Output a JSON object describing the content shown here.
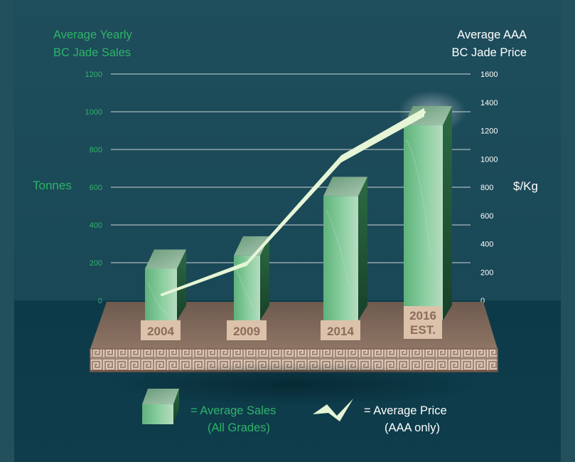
{
  "chart_data": {
    "type": "bar",
    "title_left": [
      "Average Yearly",
      "BC Jade Sales"
    ],
    "title_right": [
      "Average AAA",
      "BC Jade Price"
    ],
    "ylabel_left": "Tonnes",
    "ylabel_right": "$/Kg",
    "ylim_left": [
      0,
      1200
    ],
    "ylim_right": [
      0,
      1600
    ],
    "yticks_left": [
      "0",
      "200",
      "400",
      "600",
      "800",
      "1000",
      "1200"
    ],
    "yticks_right": [
      "0",
      "200",
      "400",
      "600",
      "800",
      "1000",
      "1200",
      "1400",
      "1600"
    ],
    "grid": true,
    "categories": [
      [
        "2004"
      ],
      [
        "2009"
      ],
      [
        "2014"
      ],
      [
        "2016",
        "EST."
      ]
    ],
    "series": [
      {
        "name": "Average Sales (All Grades)",
        "kind": "bar",
        "axis": "left",
        "values": [
          270,
          340,
          655,
          1030
        ]
      },
      {
        "name": "Average Price (AAA only)",
        "kind": "line",
        "axis": "right",
        "values": [
          40,
          260,
          1000,
          1330
        ]
      }
    ],
    "legend": {
      "placement": "bottom",
      "items": [
        {
          "icon": "jade-block-icon",
          "lines": [
            "= Average Sales",
            "(All Grades)"
          ]
        },
        {
          "icon": "zigzag-line-icon",
          "lines": [
            "= Average Price",
            "(AAA only)"
          ]
        }
      ]
    }
  },
  "colors": {
    "background_top": "#1c4c5a",
    "background_bottom": "#0f3a48",
    "green_text": "#2fb36a",
    "white_text": "#ffffff",
    "grid": "#a9b9bc",
    "jade_light": "#8fd3a3",
    "jade_dark": "#17502f",
    "price_line": "#e6f5d6",
    "platform": "#8a7060",
    "label_box": "#dcc2ab",
    "label_text": "#8a6c58"
  }
}
